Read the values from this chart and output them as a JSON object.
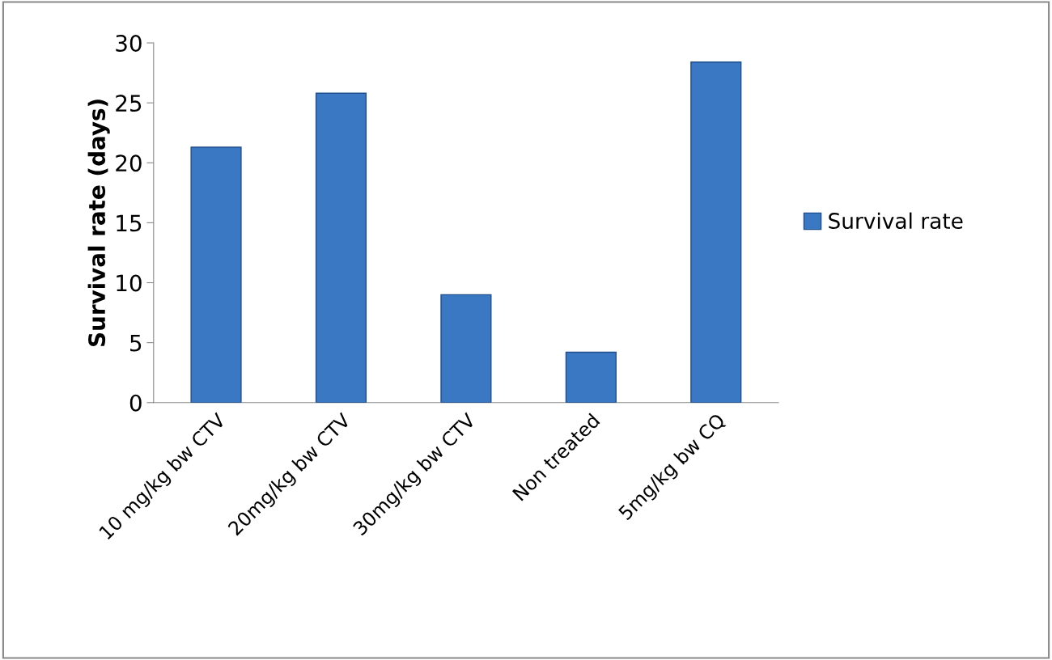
{
  "chart_data": {
    "type": "bar",
    "ylabel": "Survival rate (days)",
    "categories": [
      "10 mg/kg bw CTV",
      "20mg/kg bw CTV",
      "30mg/kg bw CTV",
      "Non treated",
      "5mg/kg bw CQ"
    ],
    "series": [
      {
        "name": "Survival rate",
        "color": "#3a78c4",
        "values": [
          21.3,
          25.8,
          9.0,
          4.2,
          28.4
        ]
      }
    ],
    "ylim": [
      0,
      30
    ],
    "yticks": [
      0,
      5,
      10,
      15,
      20,
      25,
      30
    ],
    "grid": false,
    "legend": "right"
  }
}
